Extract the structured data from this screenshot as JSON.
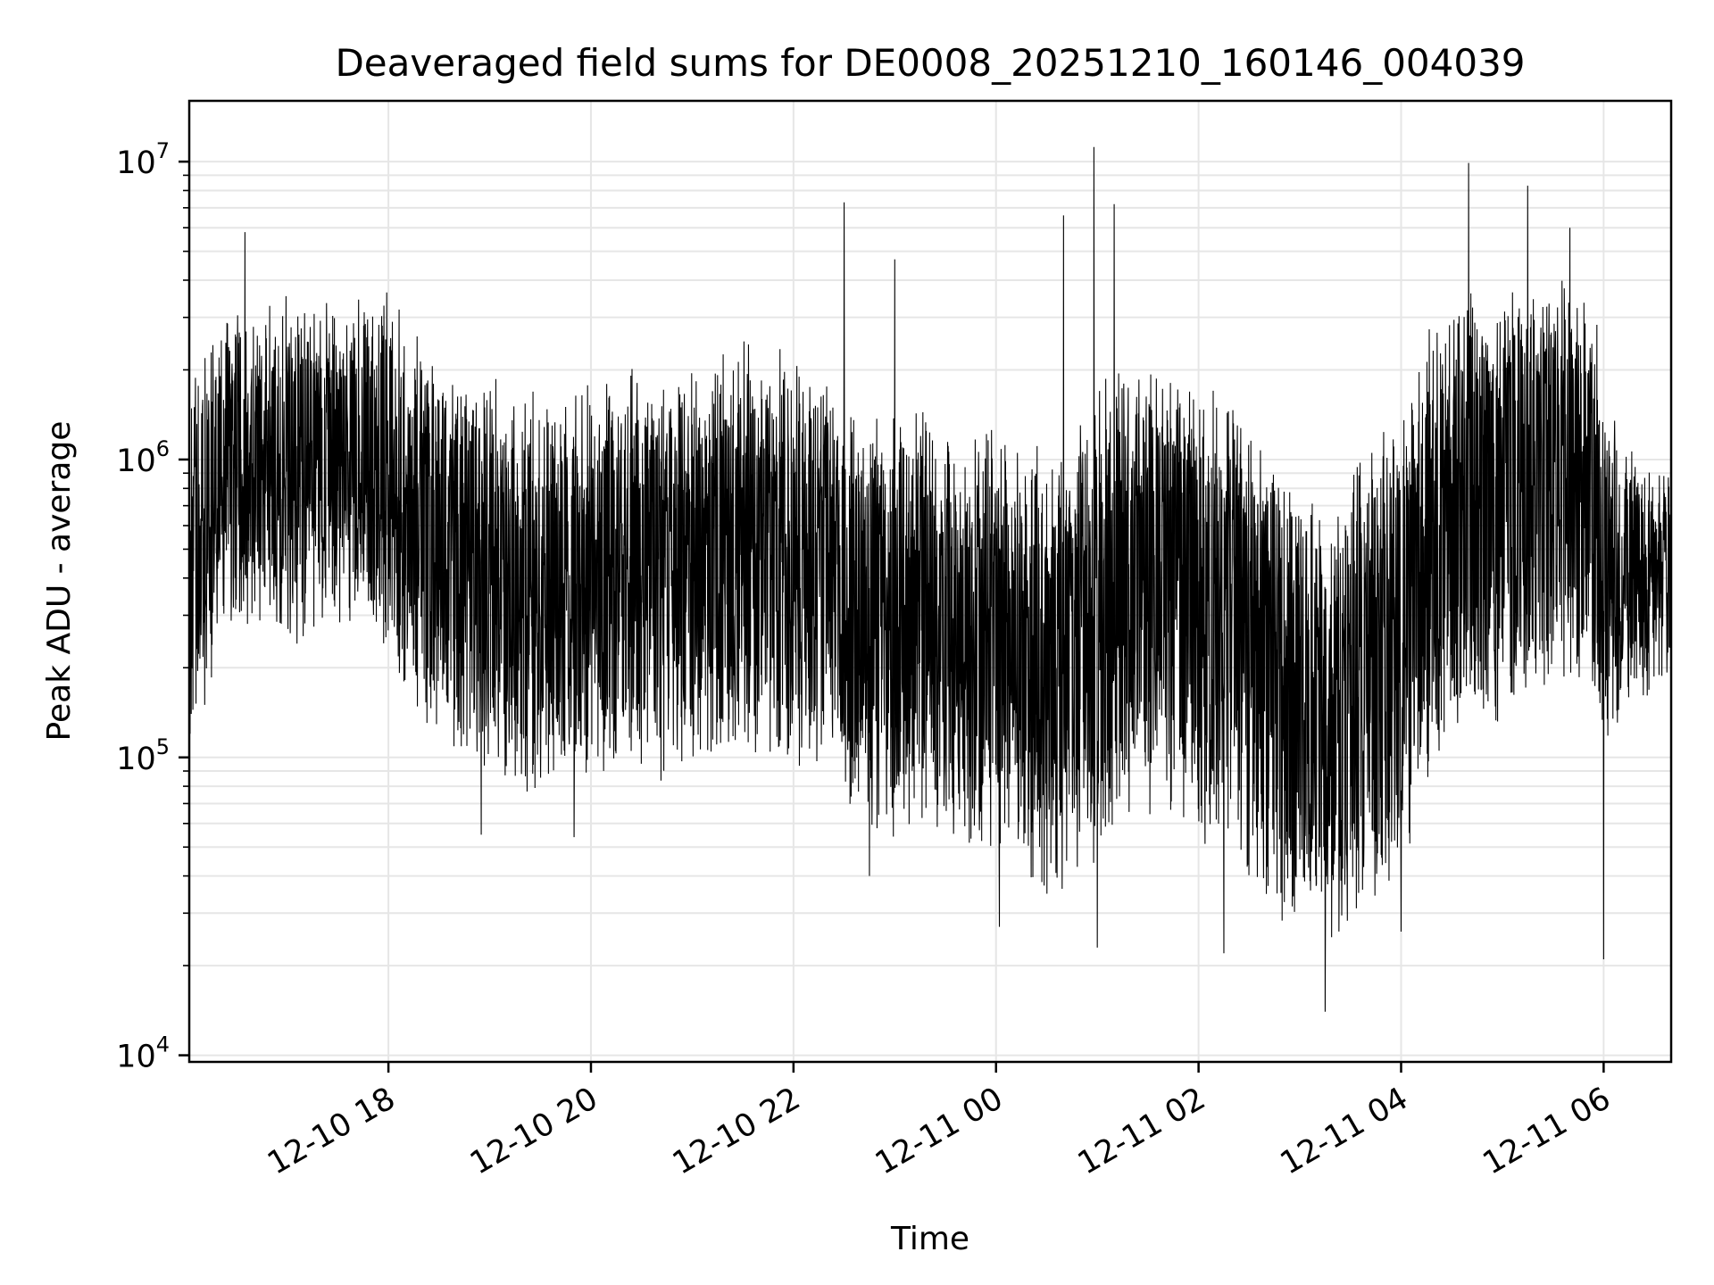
{
  "chart_data": {
    "type": "line",
    "title": "Deaveraged field sums for DE0008_20251210_160146_004039",
    "xlabel": "Time",
    "ylabel": "Peak ADU - average",
    "x_axis": {
      "kind": "datetime",
      "range": [
        "2025-12-10T16:02:00",
        "2025-12-11T06:40:00"
      ],
      "ticks": [
        {
          "label": "12-10 18",
          "value": "2025-12-10T18:00:00"
        },
        {
          "label": "12-10 20",
          "value": "2025-12-10T20:00:00"
        },
        {
          "label": "12-10 22",
          "value": "2025-12-10T22:00:00"
        },
        {
          "label": "12-11 00",
          "value": "2025-12-11T00:00:00"
        },
        {
          "label": "12-11 02",
          "value": "2025-12-11T02:00:00"
        },
        {
          "label": "12-11 04",
          "value": "2025-12-11T04:00:00"
        },
        {
          "label": "12-11 06",
          "value": "2025-12-11T06:00:00"
        }
      ]
    },
    "y_axis": {
      "scale": "log",
      "range": [
        9500,
        16000000
      ],
      "ticks": [
        {
          "value": 10000,
          "label": "10^4"
        },
        {
          "value": 100000,
          "label": "10^5"
        },
        {
          "value": 1000000,
          "label": "10^6"
        },
        {
          "value": 10000000,
          "label": "10^7"
        }
      ]
    },
    "grid": true,
    "legend": "none",
    "series": [
      {
        "color": "#000000",
        "x": [
          "2025-12-10T16:02",
          "2025-12-10T16:20",
          "2025-12-10T16:40",
          "2025-12-10T17:00",
          "2025-12-10T17:20",
          "2025-12-10T17:40",
          "2025-12-10T18:00",
          "2025-12-10T18:20",
          "2025-12-10T18:40",
          "2025-12-10T19:00",
          "2025-12-10T19:20",
          "2025-12-10T19:40",
          "2025-12-10T20:00",
          "2025-12-10T20:20",
          "2025-12-10T20:40",
          "2025-12-10T21:00",
          "2025-12-10T21:20",
          "2025-12-10T21:40",
          "2025-12-10T22:00",
          "2025-12-10T22:20",
          "2025-12-10T22:40",
          "2025-12-10T23:00",
          "2025-12-10T23:20",
          "2025-12-10T23:40",
          "2025-12-11T00:00",
          "2025-12-11T00:20",
          "2025-12-11T00:40",
          "2025-12-11T01:00",
          "2025-12-11T01:20",
          "2025-12-11T01:40",
          "2025-12-11T02:00",
          "2025-12-11T02:20",
          "2025-12-11T02:40",
          "2025-12-11T03:00",
          "2025-12-11T03:20",
          "2025-12-11T03:40",
          "2025-12-11T04:00",
          "2025-12-11T04:20",
          "2025-12-11T04:40",
          "2025-12-11T05:00",
          "2025-12-11T05:20",
          "2025-12-11T05:40",
          "2025-12-11T06:00",
          "2025-12-11T06:20",
          "2025-12-11T06:40"
        ],
        "y": [
          300000,
          900000,
          1000000,
          900000,
          1000000,
          1100000,
          900000,
          700000,
          500000,
          450000,
          400000,
          380000,
          400000,
          500000,
          450000,
          500000,
          550000,
          550000,
          500000,
          500000,
          350000,
          380000,
          400000,
          300000,
          250000,
          180000,
          200000,
          350000,
          500000,
          500000,
          450000,
          400000,
          200000,
          150000,
          100000,
          200000,
          250000,
          600000,
          800000,
          900000,
          1000000,
          1200000,
          600000,
          500000,
          450000
        ],
        "noise_band_low": [
          100000,
          300000,
          350000,
          300000,
          350000,
          400000,
          250000,
          180000,
          120000,
          110000,
          100000,
          100000,
          100000,
          120000,
          110000,
          120000,
          130000,
          130000,
          120000,
          110000,
          80000,
          70000,
          80000,
          60000,
          60000,
          45000,
          50000,
          60000,
          80000,
          80000,
          70000,
          60000,
          40000,
          35000,
          28000,
          40000,
          50000,
          120000,
          150000,
          180000,
          200000,
          250000,
          150000,
          200000,
          200000
        ],
        "noise_band_high": [
          1500000,
          2500000,
          3000000,
          3000000,
          3000000,
          3000000,
          3000000,
          2000000,
          1500000,
          1500000,
          1400000,
          1300000,
          1500000,
          1800000,
          1600000,
          1700000,
          2000000,
          2000000,
          1800000,
          1700000,
          1200000,
          1200000,
          1300000,
          1100000,
          1000000,
          900000,
          900000,
          1600000,
          1800000,
          1800000,
          1500000,
          1300000,
          900000,
          700000,
          500000,
          1000000,
          1200000,
          2500000,
          3000000,
          3200000,
          3500000,
          3500000,
          2000000,
          800000,
          800000
        ],
        "spikes": [
          {
            "x": "2025-12-10T16:35",
            "y": 5800000
          },
          {
            "x": "2025-12-10T22:30",
            "y": 7300000
          },
          {
            "x": "2025-12-10T23:00",
            "y": 4700000
          },
          {
            "x": "2025-12-11T00:40",
            "y": 6600000
          },
          {
            "x": "2025-12-11T00:58",
            "y": 11200000
          },
          {
            "x": "2025-12-11T01:10",
            "y": 7200000
          },
          {
            "x": "2025-12-11T04:40",
            "y": 9900000
          },
          {
            "x": "2025-12-11T05:15",
            "y": 8300000
          },
          {
            "x": "2025-12-11T05:40",
            "y": 6000000
          },
          {
            "x": "2025-12-10T18:55",
            "y": 55000
          },
          {
            "x": "2025-12-10T19:50",
            "y": 54000
          },
          {
            "x": "2025-12-10T22:45",
            "y": 40000
          },
          {
            "x": "2025-12-11T00:02",
            "y": 27000
          },
          {
            "x": "2025-12-11T01:00",
            "y": 23000
          },
          {
            "x": "2025-12-11T02:15",
            "y": 22000
          },
          {
            "x": "2025-12-11T03:15",
            "y": 14000
          },
          {
            "x": "2025-12-11T04:00",
            "y": 26000
          },
          {
            "x": "2025-12-11T06:00",
            "y": 21000
          }
        ]
      }
    ]
  }
}
